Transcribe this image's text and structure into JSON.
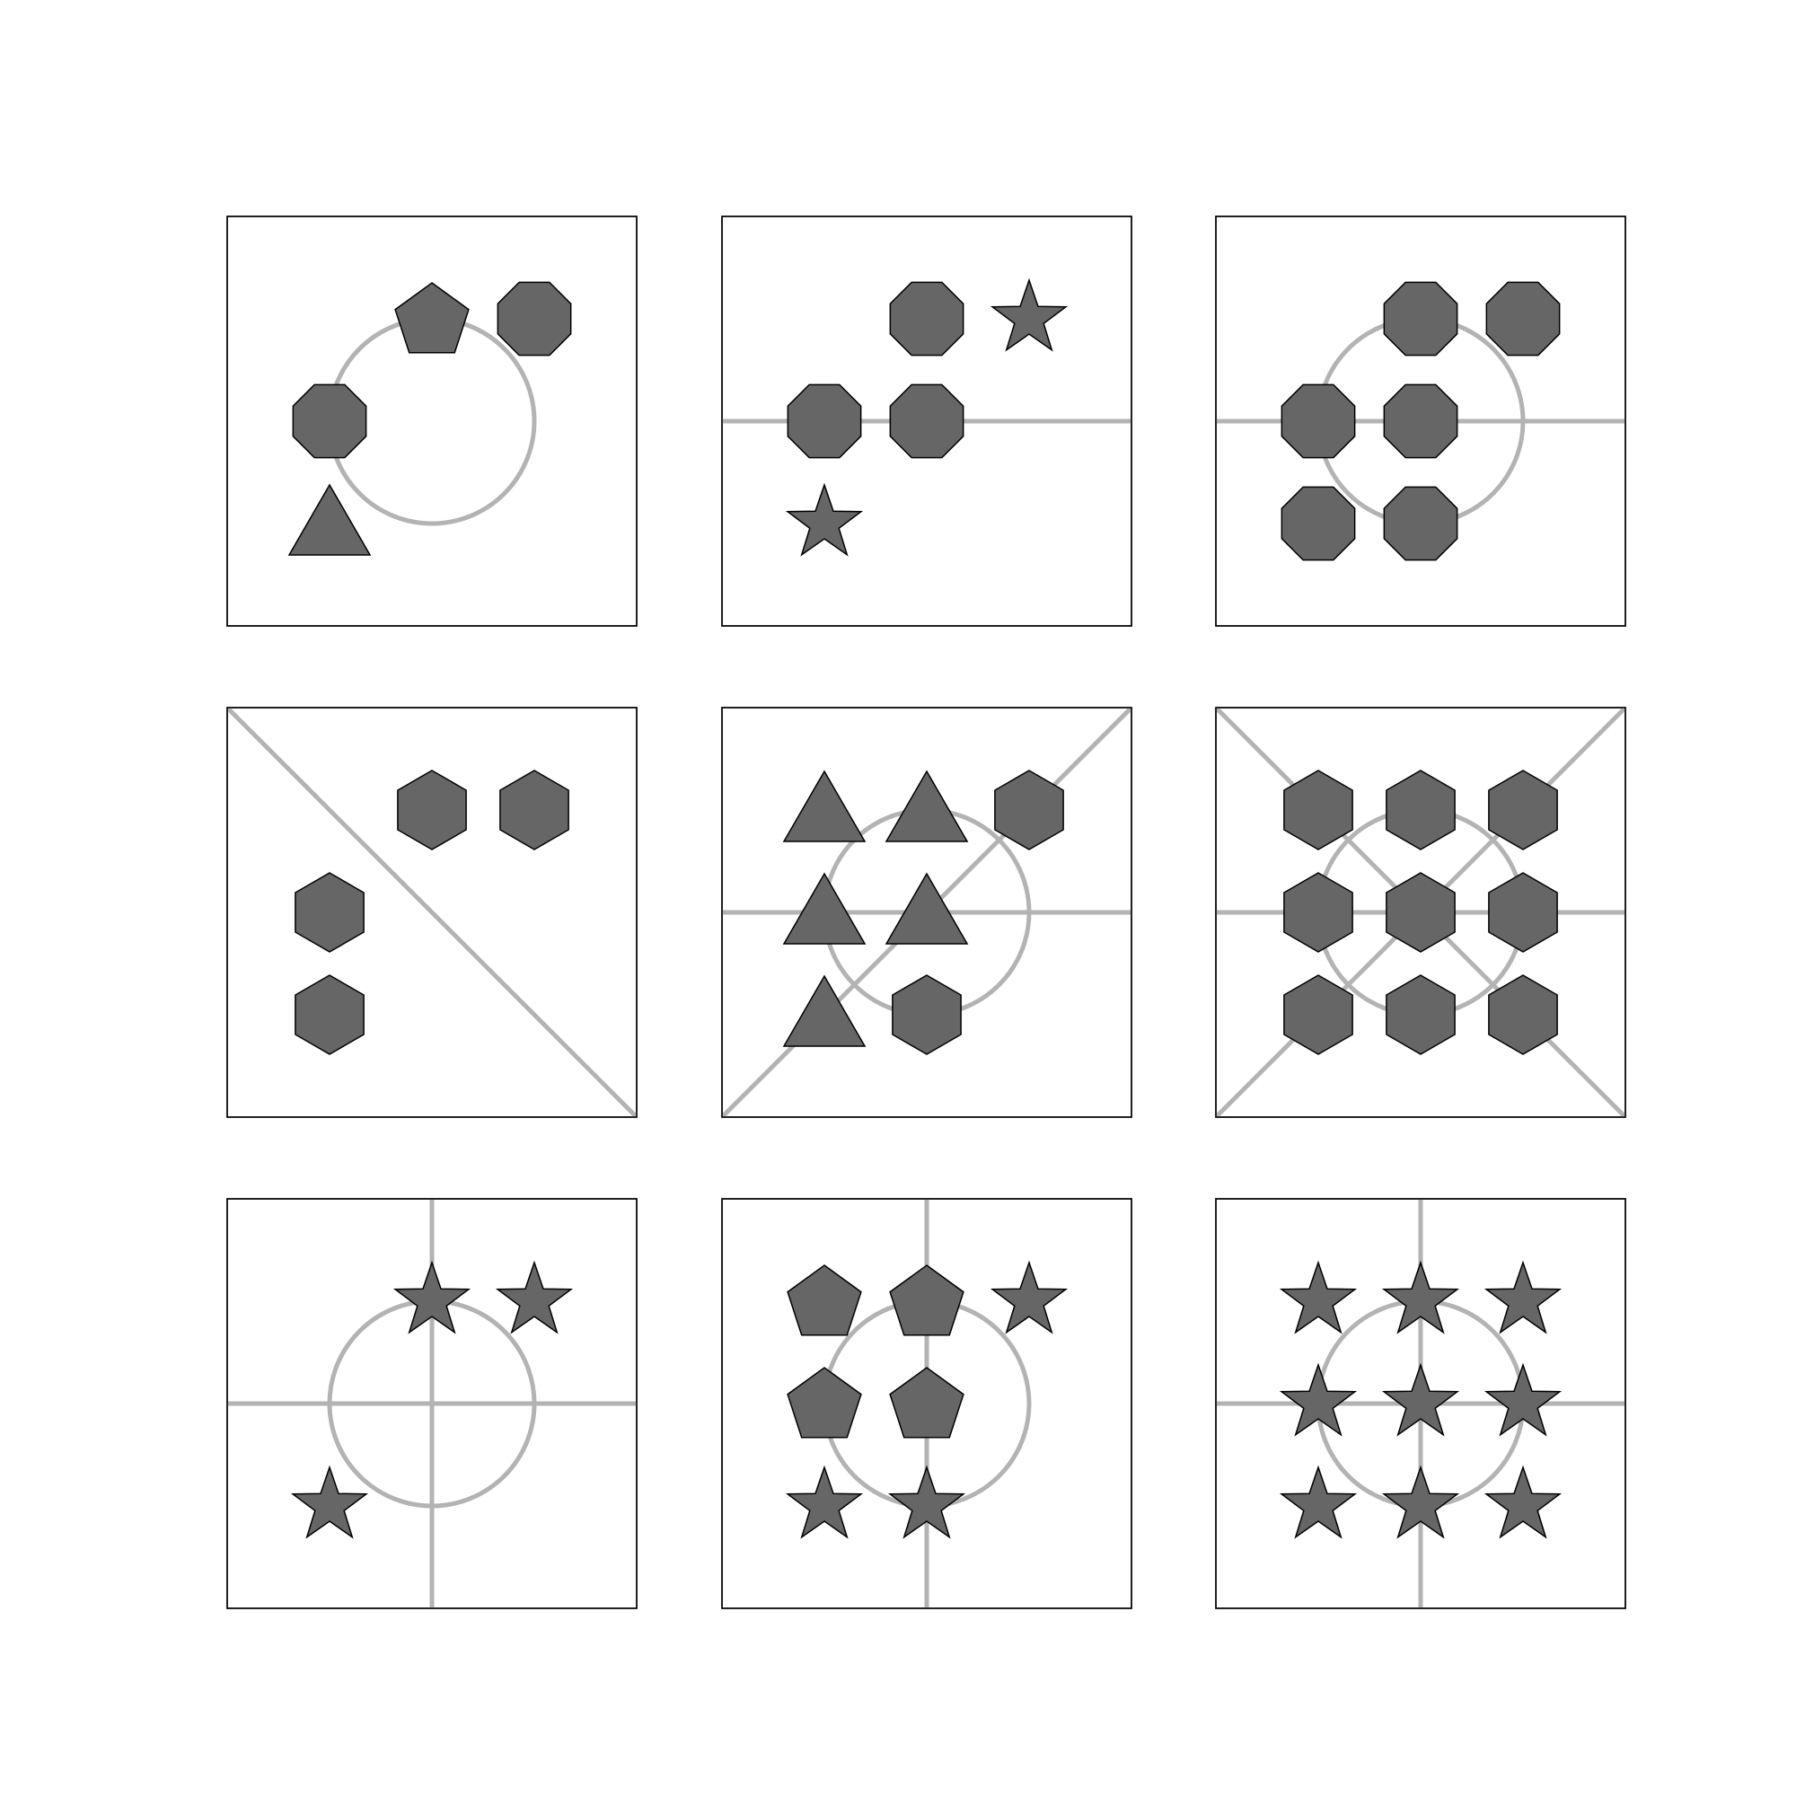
{
  "colors": {
    "background": "#ffffff",
    "panel_border": "#000000",
    "guide_line": "#b3b3b3",
    "shape_fill": "#666666",
    "shape_stroke": "#000000"
  },
  "panels": [
    {
      "row": 1,
      "col": 1,
      "guides": [
        "circle"
      ],
      "shapes": [
        {
          "type": "pentagon",
          "cell": [
            1,
            2
          ]
        },
        {
          "type": "octagon",
          "cell": [
            1,
            3
          ]
        },
        {
          "type": "octagon",
          "cell": [
            2,
            1
          ]
        },
        {
          "type": "triangle",
          "cell": [
            3,
            1
          ]
        }
      ]
    },
    {
      "row": 1,
      "col": 2,
      "guides": [
        "horizontal"
      ],
      "shapes": [
        {
          "type": "octagon",
          "cell": [
            1,
            2
          ]
        },
        {
          "type": "star",
          "cell": [
            1,
            3
          ]
        },
        {
          "type": "octagon",
          "cell": [
            2,
            1
          ]
        },
        {
          "type": "octagon",
          "cell": [
            2,
            2
          ]
        },
        {
          "type": "star",
          "cell": [
            3,
            1
          ]
        }
      ]
    },
    {
      "row": 1,
      "col": 3,
      "guides": [
        "circle",
        "horizontal"
      ],
      "shapes": [
        {
          "type": "octagon",
          "cell": [
            1,
            2
          ]
        },
        {
          "type": "octagon",
          "cell": [
            1,
            3
          ]
        },
        {
          "type": "octagon",
          "cell": [
            2,
            1
          ]
        },
        {
          "type": "octagon",
          "cell": [
            2,
            2
          ]
        },
        {
          "type": "octagon",
          "cell": [
            3,
            1
          ]
        },
        {
          "type": "octagon",
          "cell": [
            3,
            2
          ]
        }
      ]
    },
    {
      "row": 2,
      "col": 1,
      "guides": [
        "diagonal-down"
      ],
      "shapes": [
        {
          "type": "hexagon",
          "cell": [
            1,
            2
          ]
        },
        {
          "type": "hexagon",
          "cell": [
            1,
            3
          ]
        },
        {
          "type": "hexagon",
          "cell": [
            2,
            1
          ]
        },
        {
          "type": "hexagon",
          "cell": [
            3,
            1
          ]
        }
      ]
    },
    {
      "row": 2,
      "col": 2,
      "guides": [
        "circle",
        "horizontal",
        "diagonal-up"
      ],
      "shapes": [
        {
          "type": "triangle",
          "cell": [
            1,
            1
          ]
        },
        {
          "type": "triangle",
          "cell": [
            1,
            2
          ]
        },
        {
          "type": "hexagon",
          "cell": [
            1,
            3
          ]
        },
        {
          "type": "triangle",
          "cell": [
            2,
            1
          ]
        },
        {
          "type": "triangle",
          "cell": [
            2,
            2
          ]
        },
        {
          "type": "triangle",
          "cell": [
            3,
            1
          ]
        },
        {
          "type": "hexagon",
          "cell": [
            3,
            2
          ]
        }
      ]
    },
    {
      "row": 2,
      "col": 3,
      "guides": [
        "circle",
        "horizontal",
        "diagonal-down",
        "diagonal-up"
      ],
      "shapes": [
        {
          "type": "hexagon",
          "cell": [
            1,
            1
          ]
        },
        {
          "type": "hexagon",
          "cell": [
            1,
            2
          ]
        },
        {
          "type": "hexagon",
          "cell": [
            1,
            3
          ]
        },
        {
          "type": "hexagon",
          "cell": [
            2,
            1
          ]
        },
        {
          "type": "hexagon",
          "cell": [
            2,
            2
          ]
        },
        {
          "type": "hexagon",
          "cell": [
            2,
            3
          ]
        },
        {
          "type": "hexagon",
          "cell": [
            3,
            1
          ]
        },
        {
          "type": "hexagon",
          "cell": [
            3,
            2
          ]
        },
        {
          "type": "hexagon",
          "cell": [
            3,
            3
          ]
        }
      ]
    },
    {
      "row": 3,
      "col": 1,
      "guides": [
        "circle",
        "horizontal",
        "vertical"
      ],
      "shapes": [
        {
          "type": "star",
          "cell": [
            1,
            2
          ]
        },
        {
          "type": "star",
          "cell": [
            1,
            3
          ]
        },
        {
          "type": "star",
          "cell": [
            3,
            1
          ]
        }
      ]
    },
    {
      "row": 3,
      "col": 2,
      "guides": [
        "circle",
        "vertical"
      ],
      "shapes": [
        {
          "type": "pentagon",
          "cell": [
            1,
            1
          ]
        },
        {
          "type": "pentagon",
          "cell": [
            1,
            2
          ]
        },
        {
          "type": "star",
          "cell": [
            1,
            3
          ]
        },
        {
          "type": "pentagon",
          "cell": [
            2,
            1
          ]
        },
        {
          "type": "pentagon",
          "cell": [
            2,
            2
          ]
        },
        {
          "type": "star",
          "cell": [
            3,
            1
          ]
        },
        {
          "type": "star",
          "cell": [
            3,
            2
          ]
        }
      ]
    },
    {
      "row": 3,
      "col": 3,
      "guides": [
        "circle",
        "horizontal",
        "vertical"
      ],
      "shapes": [
        {
          "type": "star",
          "cell": [
            1,
            1
          ]
        },
        {
          "type": "star",
          "cell": [
            1,
            2
          ]
        },
        {
          "type": "star",
          "cell": [
            1,
            3
          ]
        },
        {
          "type": "star",
          "cell": [
            2,
            1
          ]
        },
        {
          "type": "star",
          "cell": [
            2,
            2
          ]
        },
        {
          "type": "star",
          "cell": [
            2,
            3
          ]
        },
        {
          "type": "star",
          "cell": [
            3,
            1
          ]
        },
        {
          "type": "star",
          "cell": [
            3,
            2
          ]
        },
        {
          "type": "star",
          "cell": [
            3,
            3
          ]
        }
      ]
    }
  ]
}
